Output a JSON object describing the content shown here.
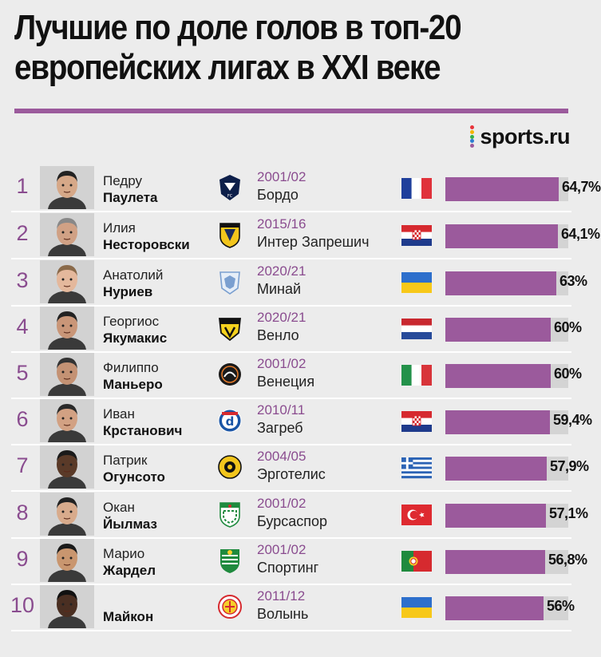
{
  "title_line1": "Лучшие по доле голов в топ-20",
  "title_line2": "европейских лигах в XXI веке",
  "brand": {
    "text": "sports.ru",
    "dot_colors": [
      "#e8343a",
      "#f4b400",
      "#36b04a",
      "#2d7dd2",
      "#9b5a9c"
    ]
  },
  "colors": {
    "accent": "#9b5a9c",
    "track": "#d4d4d4",
    "background": "#ececec"
  },
  "chart_data": {
    "type": "bar",
    "orientation": "horizontal",
    "title": "Лучшие по доле голов в топ-20 европейских лигах в XXI веке",
    "xlim": [
      0,
      70
    ],
    "unit": "%",
    "rows": [
      {
        "rank": "1",
        "first": "Педру",
        "last": "Паулета",
        "season": "2001/02",
        "club": "Бордо",
        "flag": "france",
        "crest": "bordeaux-crest",
        "value": 64.7,
        "label": "64,7%"
      },
      {
        "rank": "2",
        "first": "Илия",
        "last": "Несторовски",
        "season": "2015/16",
        "club": "Интер Запрешич",
        "flag": "croatia",
        "crest": "inter-zapresic-crest",
        "value": 64.1,
        "label": "64,1%"
      },
      {
        "rank": "3",
        "first": "Анатолий",
        "last": "Нуриев",
        "season": "2020/21",
        "club": "Минай",
        "flag": "ukraine",
        "crest": "minaj-crest",
        "value": 63,
        "label": "63%"
      },
      {
        "rank": "4",
        "first": "Георгиос",
        "last": "Якумакис",
        "season": "2020/21",
        "club": "Венло",
        "flag": "netherlands",
        "crest": "venlo-crest",
        "value": 60,
        "label": "60%"
      },
      {
        "rank": "5",
        "first": "Филиппо",
        "last": "Маньеро",
        "season": "2001/02",
        "club": "Венеция",
        "flag": "italy",
        "crest": "venezia-crest",
        "value": 60,
        "label": "60%"
      },
      {
        "rank": "6",
        "first": "Иван",
        "last": "Крстанович",
        "season": "2010/11",
        "club": "Загреб",
        "flag": "croatia",
        "crest": "dinamo-zagreb-crest",
        "value": 59.4,
        "label": "59,4%"
      },
      {
        "rank": "7",
        "first": "Патрик",
        "last": "Огунсото",
        "season": "2004/05",
        "club": "Эрготелис",
        "flag": "greece",
        "crest": "ergotelis-crest",
        "value": 57.9,
        "label": "57,9%"
      },
      {
        "rank": "8",
        "first": "Окан",
        "last": "Йылмаз",
        "season": "2001/02",
        "club": "Бурсаспор",
        "flag": "turkey",
        "crest": "bursaspor-crest",
        "value": 57.1,
        "label": "57,1%"
      },
      {
        "rank": "9",
        "first": "Марио",
        "last": "Жардел",
        "season": "2001/02",
        "club": "Спортинг",
        "flag": "portugal",
        "crest": "sporting-crest",
        "value": 56.8,
        "label": "56,8%"
      },
      {
        "rank": "10",
        "first": "",
        "last": "Майкон",
        "season": "2011/12",
        "club": "Волынь",
        "flag": "ukraine",
        "crest": "volyn-crest",
        "value": 56,
        "label": "56%"
      }
    ]
  }
}
